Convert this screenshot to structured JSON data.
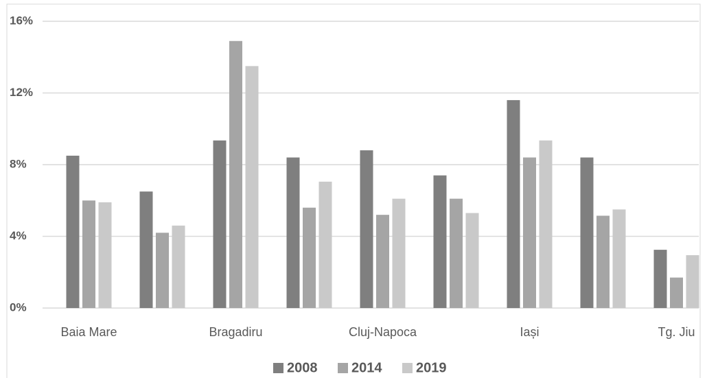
{
  "chart_data": {
    "type": "bar",
    "categories": [
      "Baia Mare",
      null,
      "Bragadiru",
      null,
      "Cluj-Napoca",
      null,
      "Iași",
      null,
      "Tg. Jiu"
    ],
    "series": [
      {
        "name": "2008",
        "color": "#7f7f7f",
        "values": [
          8.5,
          6.5,
          9.35,
          8.4,
          8.8,
          7.4,
          11.6,
          8.4,
          3.25
        ]
      },
      {
        "name": "2014",
        "color": "#a5a5a5",
        "values": [
          6.0,
          4.2,
          14.9,
          5.6,
          5.2,
          6.1,
          8.4,
          5.15,
          1.7
        ]
      },
      {
        "name": "2019",
        "color": "#c9c9c9",
        "values": [
          5.9,
          4.6,
          13.5,
          7.05,
          6.1,
          5.3,
          9.35,
          5.5,
          2.95
        ]
      }
    ],
    "ylim": [
      0,
      16
    ],
    "yticks": [
      {
        "value": 0,
        "label": "0%"
      },
      {
        "value": 4,
        "label": "4%"
      },
      {
        "value": 8,
        "label": "8%"
      },
      {
        "value": 12,
        "label": "12%"
      },
      {
        "value": 16,
        "label": "16%"
      }
    ],
    "grid": true,
    "legend": "bottom"
  }
}
